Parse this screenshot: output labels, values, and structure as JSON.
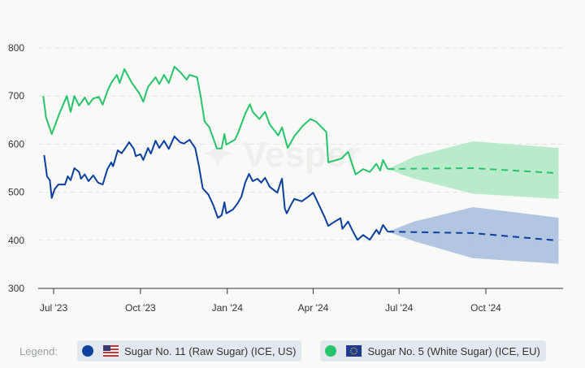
{
  "watermark": "Vesper",
  "legend": {
    "label": "Legend:",
    "items": [
      {
        "name": "Sugar No. 11 (Raw Sugar) (ICE, US)",
        "color": "#0b3fa0",
        "flag": "us-flag-icon"
      },
      {
        "name": "Sugar No. 5 (White Sugar) (ICE, EU)",
        "color": "#27c46a",
        "flag": "eu-flag-icon"
      }
    ]
  },
  "chart_data": {
    "type": "line",
    "title": "",
    "xlabel": "",
    "ylabel": "",
    "ylim": [
      300,
      800
    ],
    "xlim": [
      "2023-06-15",
      "2024-12-22"
    ],
    "yticks": [
      300,
      400,
      500,
      600,
      700,
      800
    ],
    "xticks": [
      {
        "date": "2023-07-01",
        "label": "Jul '23"
      },
      {
        "date": "2023-10-01",
        "label": "Oct '23"
      },
      {
        "date": "2024-01-01",
        "label": "Jan '24"
      },
      {
        "date": "2024-04-01",
        "label": "Apr '24"
      },
      {
        "date": "2024-07-01",
        "label": "Jul '24"
      },
      {
        "date": "2024-10-01",
        "label": "Oct '24"
      }
    ],
    "grid": "horizontal dashed",
    "series": [
      {
        "name": "Sugar No. 11 (Raw Sugar) (ICE, US)",
        "color": "#0b3fa0",
        "band_color": "#aec2df",
        "history": [
          [
            "2023-06-21",
            577
          ],
          [
            "2023-06-24",
            533
          ],
          [
            "2023-06-27",
            525
          ],
          [
            "2023-06-29",
            488
          ],
          [
            "2023-07-02",
            506
          ],
          [
            "2023-07-06",
            516
          ],
          [
            "2023-07-13",
            516
          ],
          [
            "2023-07-16",
            533
          ],
          [
            "2023-07-19",
            525
          ],
          [
            "2023-07-23",
            550
          ],
          [
            "2023-07-28",
            542
          ],
          [
            "2023-07-30",
            528
          ],
          [
            "2023-08-03",
            537
          ],
          [
            "2023-08-07",
            523
          ],
          [
            "2023-08-12",
            535
          ],
          [
            "2023-08-17",
            520
          ],
          [
            "2023-08-22",
            516
          ],
          [
            "2023-08-27",
            548
          ],
          [
            "2023-08-31",
            562
          ],
          [
            "2023-09-02",
            554
          ],
          [
            "2023-09-07",
            587
          ],
          [
            "2023-09-11",
            581
          ],
          [
            "2023-09-15",
            592
          ],
          [
            "2023-09-19",
            604
          ],
          [
            "2023-09-24",
            590
          ],
          [
            "2023-09-26",
            575
          ],
          [
            "2023-10-01",
            579
          ],
          [
            "2023-10-04",
            567
          ],
          [
            "2023-10-09",
            592
          ],
          [
            "2023-10-12",
            580
          ],
          [
            "2023-10-17",
            607
          ],
          [
            "2023-10-21",
            592
          ],
          [
            "2023-10-26",
            607
          ],
          [
            "2023-10-31",
            590
          ],
          [
            "2023-11-06",
            616
          ],
          [
            "2023-11-12",
            604
          ],
          [
            "2023-11-16",
            601
          ],
          [
            "2023-11-22",
            609
          ],
          [
            "2023-11-28",
            592
          ],
          [
            "2023-12-02",
            554
          ],
          [
            "2023-12-06",
            508
          ],
          [
            "2023-12-12",
            495
          ],
          [
            "2023-12-17",
            474
          ],
          [
            "2023-12-22",
            447
          ],
          [
            "2023-12-26",
            452
          ],
          [
            "2023-12-29",
            479
          ],
          [
            "2023-12-31",
            456
          ],
          [
            "2024-01-07",
            464
          ],
          [
            "2024-01-12",
            477
          ],
          [
            "2024-01-16",
            491
          ],
          [
            "2024-01-20",
            520
          ],
          [
            "2024-01-24",
            538
          ],
          [
            "2024-01-28",
            523
          ],
          [
            "2024-02-02",
            528
          ],
          [
            "2024-02-06",
            520
          ],
          [
            "2024-02-10",
            530
          ],
          [
            "2024-02-15",
            511
          ],
          [
            "2024-02-23",
            499
          ],
          [
            "2024-02-27",
            523
          ],
          [
            "2024-02-28",
            528
          ],
          [
            "2024-03-02",
            466
          ],
          [
            "2024-03-04",
            456
          ],
          [
            "2024-03-08",
            472
          ],
          [
            "2024-03-12",
            486
          ],
          [
            "2024-03-20",
            481
          ],
          [
            "2024-03-27",
            491
          ],
          [
            "2024-04-01",
            499
          ],
          [
            "2024-04-07",
            474
          ],
          [
            "2024-04-13",
            449
          ],
          [
            "2024-04-17",
            430
          ],
          [
            "2024-04-24",
            439
          ],
          [
            "2024-04-30",
            446
          ],
          [
            "2024-05-02",
            424
          ],
          [
            "2024-05-08",
            439
          ],
          [
            "2024-05-14",
            415
          ],
          [
            "2024-05-18",
            401
          ],
          [
            "2024-05-24",
            411
          ],
          [
            "2024-05-31",
            401
          ],
          [
            "2024-06-07",
            422
          ],
          [
            "2024-06-10",
            413
          ],
          [
            "2024-06-14",
            432
          ],
          [
            "2024-06-19",
            418
          ]
        ],
        "forecast": [
          [
            "2024-06-19",
            418,
            418,
            418
          ],
          [
            "2024-07-17",
            417,
            398,
            439
          ],
          [
            "2024-09-17",
            415,
            363,
            469
          ],
          [
            "2024-12-13",
            400,
            null,
            null
          ],
          [
            "2024-12-17",
            null,
            351,
            447
          ]
        ]
      },
      {
        "name": "Sugar No. 5 (White Sugar) (ICE, EU)",
        "color": "#27c46a",
        "band_color": "#b5e9c9",
        "history": [
          [
            "2023-06-20",
            700
          ],
          [
            "2023-06-23",
            655
          ],
          [
            "2023-06-29",
            621
          ],
          [
            "2023-07-07",
            663
          ],
          [
            "2023-07-15",
            700
          ],
          [
            "2023-07-19",
            667
          ],
          [
            "2023-07-23",
            700
          ],
          [
            "2023-07-28",
            680
          ],
          [
            "2023-08-03",
            697
          ],
          [
            "2023-08-07",
            682
          ],
          [
            "2023-08-12",
            695
          ],
          [
            "2023-08-18",
            698
          ],
          [
            "2023-08-22",
            682
          ],
          [
            "2023-08-27",
            710
          ],
          [
            "2023-08-31",
            727
          ],
          [
            "2023-09-06",
            744
          ],
          [
            "2023-09-09",
            727
          ],
          [
            "2023-09-14",
            756
          ],
          [
            "2023-09-22",
            727
          ],
          [
            "2023-09-30",
            705
          ],
          [
            "2023-10-04",
            688
          ],
          [
            "2023-10-09",
            719
          ],
          [
            "2023-10-17",
            739
          ],
          [
            "2023-10-21",
            725
          ],
          [
            "2023-10-26",
            744
          ],
          [
            "2023-10-31",
            727
          ],
          [
            "2023-11-06",
            761
          ],
          [
            "2023-11-12",
            750
          ],
          [
            "2023-11-19",
            734
          ],
          [
            "2023-11-22",
            744
          ],
          [
            "2023-11-30",
            739
          ],
          [
            "2023-12-04",
            697
          ],
          [
            "2023-12-08",
            647
          ],
          [
            "2023-12-13",
            635
          ],
          [
            "2023-12-21",
            591
          ],
          [
            "2023-12-26",
            591
          ],
          [
            "2023-12-29",
            621
          ],
          [
            "2023-12-31",
            599
          ],
          [
            "2024-01-09",
            609
          ],
          [
            "2024-01-12",
            621
          ],
          [
            "2024-01-20",
            663
          ],
          [
            "2024-01-25",
            683
          ],
          [
            "2024-01-28",
            667
          ],
          [
            "2024-02-04",
            652
          ],
          [
            "2024-02-10",
            667
          ],
          [
            "2024-02-15",
            641
          ],
          [
            "2024-02-24",
            618
          ],
          [
            "2024-02-28",
            635
          ],
          [
            "2024-03-05",
            592
          ],
          [
            "2024-03-12",
            616
          ],
          [
            "2024-03-21",
            638
          ],
          [
            "2024-03-29",
            652
          ],
          [
            "2024-04-04",
            647
          ],
          [
            "2024-04-15",
            625
          ],
          [
            "2024-04-17",
            562
          ],
          [
            "2024-05-01",
            570
          ],
          [
            "2024-05-08",
            584
          ],
          [
            "2024-05-16",
            537
          ],
          [
            "2024-05-24",
            548
          ],
          [
            "2024-05-31",
            542
          ],
          [
            "2024-06-07",
            559
          ],
          [
            "2024-06-11",
            545
          ],
          [
            "2024-06-14",
            567
          ],
          [
            "2024-06-19",
            548
          ]
        ],
        "forecast": [
          [
            "2024-06-19",
            548,
            548,
            548
          ],
          [
            "2024-07-17",
            549,
            528,
            574
          ],
          [
            "2024-09-17",
            550,
            497,
            606
          ],
          [
            "2024-12-13",
            540,
            null,
            null
          ],
          [
            "2024-12-17",
            null,
            486,
            592
          ]
        ]
      }
    ]
  }
}
